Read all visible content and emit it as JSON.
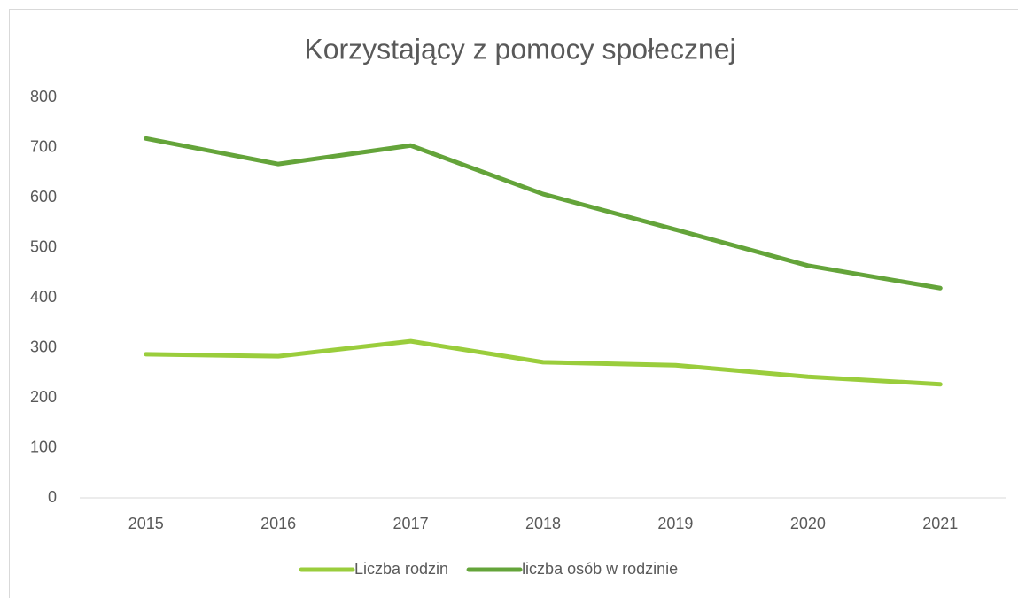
{
  "chart_data": {
    "type": "line",
    "title": "Korzystający z pomocy społecznej",
    "categories": [
      "2015",
      "2016",
      "2017",
      "2018",
      "2019",
      "2020",
      "2021"
    ],
    "series": [
      {
        "name": "Liczba rodzin",
        "color": "#9acd3c",
        "values": [
          287,
          283,
          313,
          271,
          265,
          242,
          227
        ]
      },
      {
        "name": "liczba osób w rodzinie",
        "color": "#64a43a",
        "values": [
          718,
          667,
          704,
          607,
          536,
          464,
          419
        ]
      }
    ],
    "ylim": [
      0,
      800
    ],
    "yticks": [
      0,
      100,
      200,
      300,
      400,
      500,
      600,
      700,
      800
    ],
    "grid": false,
    "legend": "bottom"
  }
}
